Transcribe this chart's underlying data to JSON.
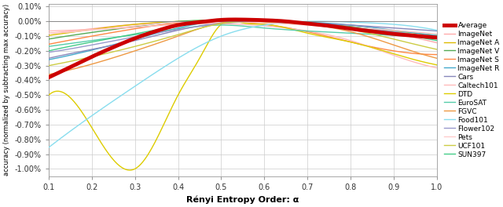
{
  "title": "",
  "xlabel": "Rényi Entropy Order: α",
  "ylabel": "accuracy (normalized by subtracting max accuracy)",
  "xlim": [
    0.1,
    1.0
  ],
  "ylim": [
    -0.0105,
    0.0012
  ],
  "ytick_vals": [
    -0.01,
    -0.009,
    -0.008,
    -0.007,
    -0.006,
    -0.005,
    -0.004,
    -0.003,
    -0.002,
    -0.001,
    0.0,
    0.001
  ],
  "ytick_labels": [
    "-1.00%",
    "-0.90%",
    "-0.80%",
    "-0.70%",
    "-0.60%",
    "-0.50%",
    "-0.40%",
    "-0.30%",
    "-0.20%",
    "-0.10%",
    "0.00%",
    "0.10%"
  ],
  "xticks": [
    0.1,
    0.2,
    0.3,
    0.4,
    0.5,
    0.6,
    0.7,
    0.8,
    0.9,
    1.0
  ],
  "series": [
    {
      "name": "Average",
      "color": "#cc0000",
      "linewidth": 3.5,
      "zorder": 10,
      "x": [
        0.1,
        0.15,
        0.2,
        0.25,
        0.3,
        0.35,
        0.4,
        0.45,
        0.5,
        0.55,
        0.6,
        0.65,
        0.7,
        0.75,
        0.8,
        0.85,
        0.9,
        0.95,
        1.0
      ],
      "y": [
        -0.0038,
        -0.0031,
        -0.0024,
        -0.00175,
        -0.00115,
        -0.00065,
        -0.00025,
        -5e-05,
        0.0001,
        0.00012,
        8e-05,
        0.0,
        -0.00015,
        -0.0003,
        -0.0005,
        -0.00068,
        -0.00085,
        -0.00098,
        -0.0011
      ]
    },
    {
      "name": "ImageNet",
      "color": "#ffaaaa",
      "linewidth": 1.0,
      "zorder": 5,
      "x": [
        0.1,
        0.2,
        0.3,
        0.4,
        0.5,
        0.6,
        0.7,
        0.8,
        0.9,
        1.0
      ],
      "y": [
        -0.0008,
        -0.0005,
        -0.0002,
        -5e-05,
        5e-05,
        0.0,
        -0.00015,
        -0.00035,
        -0.0008,
        -0.00145
      ]
    },
    {
      "name": "ImageNet A",
      "color": "#ddbb00",
      "linewidth": 1.0,
      "zorder": 5,
      "x": [
        0.1,
        0.2,
        0.3,
        0.4,
        0.5,
        0.6,
        0.7,
        0.8,
        0.9,
        1.0
      ],
      "y": [
        -0.00095,
        -0.00055,
        -0.0002,
        0.0,
        5e-05,
        -5e-05,
        -0.0002,
        -0.0004,
        -0.00065,
        -0.00095
      ]
    },
    {
      "name": "ImageNet V",
      "color": "#55aa55",
      "linewidth": 1.0,
      "zorder": 5,
      "x": [
        0.1,
        0.2,
        0.3,
        0.4,
        0.5,
        0.6,
        0.7,
        0.8,
        0.9,
        1.0
      ],
      "y": [
        -0.0012,
        -0.00075,
        -0.00035,
        0.0,
        8e-05,
        5e-05,
        -0.0001,
        -0.00035,
        -0.0007,
        -0.0011
      ]
    },
    {
      "name": "ImageNet S",
      "color": "#ff8844",
      "linewidth": 1.0,
      "zorder": 5,
      "x": [
        0.1,
        0.2,
        0.3,
        0.4,
        0.5,
        0.6,
        0.7,
        0.8,
        0.9,
        1.0
      ],
      "y": [
        -0.00155,
        -0.001,
        -0.0005,
        -0.0001,
        0.0,
        -0.0002,
        -0.0007,
        -0.0014,
        -0.002,
        -0.00225
      ]
    },
    {
      "name": "ImageNet R",
      "color": "#44aacc",
      "linewidth": 1.0,
      "zorder": 5,
      "x": [
        0.1,
        0.2,
        0.3,
        0.4,
        0.5,
        0.6,
        0.7,
        0.8,
        0.9,
        1.0
      ],
      "y": [
        -0.0026,
        -0.00195,
        -0.0012,
        -0.00045,
        5e-05,
        5e-05,
        -5e-05,
        -0.00025,
        -0.0006,
        -0.00095
      ]
    },
    {
      "name": "Cars",
      "color": "#8888bb",
      "linewidth": 1.0,
      "zorder": 5,
      "x": [
        0.1,
        0.2,
        0.3,
        0.4,
        0.5,
        0.6,
        0.7,
        0.8,
        0.9,
        1.0
      ],
      "y": [
        -0.0025,
        -0.0019,
        -0.0013,
        -0.0006,
        -0.0001,
        0.0,
        -0.0001,
        -0.00025,
        -0.00045,
        -0.00065
      ]
    },
    {
      "name": "Caltech101",
      "color": "#ffbbbb",
      "linewidth": 1.0,
      "zorder": 5,
      "x": [
        0.1,
        0.2,
        0.3,
        0.4,
        0.5,
        0.6,
        0.7,
        0.8,
        0.9,
        1.0
      ],
      "y": [
        -0.00065,
        -0.00055,
        -0.0004,
        -0.0002,
        -0.00015,
        -0.0003,
        -0.00065,
        -0.0013,
        -0.0023,
        -0.00315
      ]
    },
    {
      "name": "DTD",
      "color": "#ddcc00",
      "linewidth": 1.0,
      "zorder": 5,
      "x": [
        0.1,
        0.2,
        0.3,
        0.35,
        0.4,
        0.45,
        0.5,
        0.55,
        0.6,
        0.7,
        0.8,
        0.9,
        1.0
      ],
      "y": [
        -0.005,
        -0.0072,
        -0.01,
        -0.008,
        -0.005,
        -0.0025,
        -0.0002,
        -0.0001,
        -0.0002,
        -0.0008,
        -0.0014,
        -0.0022,
        -0.00295
      ]
    },
    {
      "name": "EuroSAT",
      "color": "#55ccaa",
      "linewidth": 1.0,
      "zorder": 5,
      "x": [
        0.1,
        0.2,
        0.3,
        0.4,
        0.5,
        0.6,
        0.7,
        0.8,
        0.9,
        1.0
      ],
      "y": [
        -0.0017,
        -0.0013,
        -0.0009,
        -0.0005,
        -0.00025,
        -0.00045,
        -0.00065,
        -0.0008,
        -0.00095,
        -0.0011
      ]
    },
    {
      "name": "FGVC",
      "color": "#ee9944",
      "linewidth": 1.0,
      "zorder": 5,
      "x": [
        0.1,
        0.2,
        0.3,
        0.4,
        0.5,
        0.6,
        0.7,
        0.8,
        0.9,
        1.0
      ],
      "y": [
        -0.0036,
        -0.0029,
        -0.002,
        -0.001,
        -0.0001,
        0.0,
        -0.0002,
        -0.0007,
        -0.0016,
        -0.0025
      ]
    },
    {
      "name": "Food101",
      "color": "#88ddee",
      "linewidth": 1.0,
      "zorder": 5,
      "x": [
        0.1,
        0.2,
        0.3,
        0.4,
        0.5,
        0.6,
        0.7,
        0.8,
        0.9,
        1.0
      ],
      "y": [
        -0.00855,
        -0.0064,
        -0.0044,
        -0.0025,
        -0.001,
        -0.00025,
        0.0,
        -5e-05,
        -0.0002,
        -0.0006
      ]
    },
    {
      "name": "Flower102",
      "color": "#9999cc",
      "linewidth": 1.0,
      "zorder": 5,
      "x": [
        0.1,
        0.2,
        0.3,
        0.4,
        0.5,
        0.6,
        0.7,
        0.8,
        0.9,
        1.0
      ],
      "y": [
        -0.0021,
        -0.0016,
        -0.00105,
        -0.00055,
        -0.00015,
        0.0,
        -0.00015,
        -0.0004,
        -0.0007,
        -0.00115
      ]
    },
    {
      "name": "Pets",
      "color": "#ffcccc",
      "linewidth": 1.0,
      "zorder": 5,
      "x": [
        0.1,
        0.2,
        0.3,
        0.4,
        0.5,
        0.6,
        0.7,
        0.8,
        0.9,
        1.0
      ],
      "y": [
        -0.0008,
        -0.0006,
        -0.0003,
        -5e-05,
        0.0,
        -0.0001,
        -0.00025,
        -0.0004,
        -0.0006,
        -0.00085
      ]
    },
    {
      "name": "UCF101",
      "color": "#cccc44",
      "linewidth": 1.0,
      "zorder": 5,
      "x": [
        0.1,
        0.2,
        0.3,
        0.4,
        0.5,
        0.6,
        0.7,
        0.8,
        0.9,
        1.0
      ],
      "y": [
        -0.003,
        -0.0024,
        -0.0017,
        -0.0009,
        -0.00015,
        0.0,
        -0.00015,
        -0.00055,
        -0.0012,
        -0.0019
      ]
    },
    {
      "name": "SUN397",
      "color": "#44cc88",
      "linewidth": 1.0,
      "zorder": 5,
      "x": [
        0.1,
        0.2,
        0.3,
        0.4,
        0.5,
        0.6,
        0.7,
        0.8,
        0.9,
        1.0
      ],
      "y": [
        -0.002,
        -0.0014,
        -0.00085,
        -0.0003,
        5e-05,
        5e-05,
        -0.0001,
        -0.0004,
        -0.0008,
        -0.0013
      ]
    }
  ],
  "background_color": "#ffffff",
  "grid_color": "#cccccc"
}
